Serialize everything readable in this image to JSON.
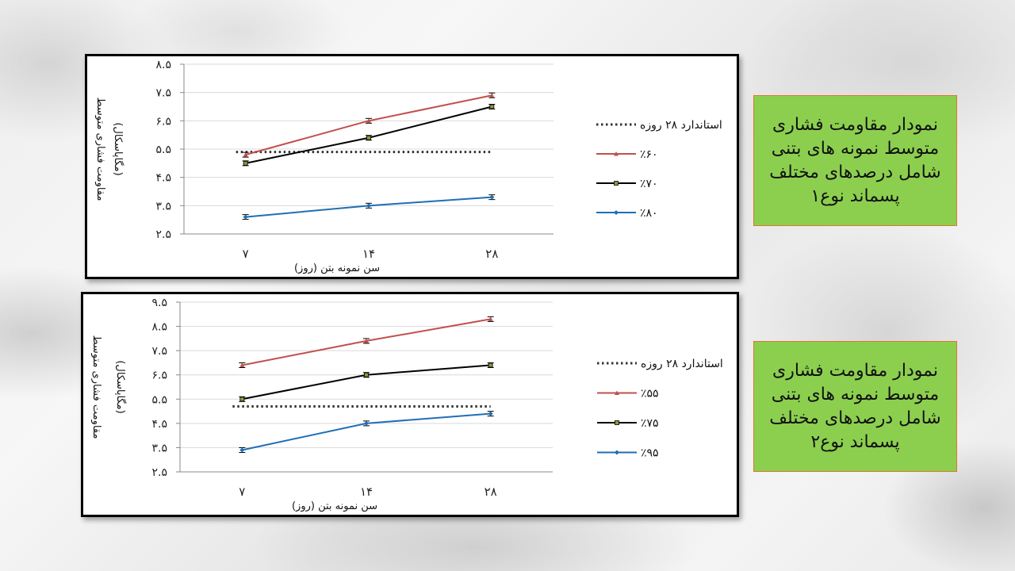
{
  "chart_data": [
    {
      "type": "line",
      "xlabel": "سن نمونه بتن (روز)",
      "ylabel_line1": "مقاومت فشاری متوسط",
      "ylabel_line2": "(مگاپاسکال)",
      "categories": [
        "۷",
        "۱۴",
        "۲۸"
      ],
      "yticks": [
        "۸.۵",
        "۷.۵",
        "۶.۵",
        "۵.۵",
        "۴.۵",
        "۳.۵",
        "۲.۵"
      ],
      "ylim": [
        2.5,
        8.5
      ],
      "grid": true,
      "legend_position": "right",
      "standard": {
        "name": "استاندارد ۲۸ روزه",
        "value": 5.4,
        "color": "#333333"
      },
      "series": [
        {
          "name": "٪۶۰",
          "values": [
            5.3,
            6.5,
            7.4
          ],
          "color": "#c0504d",
          "marker": "triangle"
        },
        {
          "name": "٪۷۰",
          "values": [
            5.0,
            5.9,
            7.0
          ],
          "color": "#000000",
          "marker": "square"
        },
        {
          "name": "٪۸۰",
          "values": [
            3.1,
            3.5,
            3.8
          ],
          "color": "#1f6fb4",
          "marker": "diamond"
        }
      ]
    },
    {
      "type": "line",
      "xlabel": "سن نمونه بتن (روز)",
      "ylabel_line1": "مقاومت فشاری متوسط",
      "ylabel_line2": "(مگاپاسکال)",
      "categories": [
        "۷",
        "۱۴",
        "۲۸"
      ],
      "yticks": [
        "۹.۵",
        "۸.۵",
        "۷.۵",
        "۶.۵",
        "۵.۵",
        "۴.۵",
        "۳.۵",
        "۲.۵"
      ],
      "ylim": [
        2.5,
        9.5
      ],
      "grid": true,
      "legend_position": "right",
      "standard": {
        "name": "استاندارد ۲۸ روزه",
        "value": 5.2,
        "color": "#333333"
      },
      "series": [
        {
          "name": "٪۵۵",
          "values": [
            6.9,
            7.9,
            8.8
          ],
          "color": "#c0504d",
          "marker": "triangle"
        },
        {
          "name": "٪۷۵",
          "values": [
            5.5,
            6.5,
            6.9
          ],
          "color": "#000000",
          "marker": "square"
        },
        {
          "name": "٪۹۵",
          "values": [
            3.4,
            4.5,
            4.9
          ],
          "color": "#1f6fb4",
          "marker": "diamond"
        }
      ]
    }
  ],
  "captions": [
    {
      "text": "نمودار مقاومت فشاری متوسط نمونه های بتنی شامل درصدهای مختلف پسماند نوع۱"
    },
    {
      "text": "نمودار مقاومت فشاری متوسط نمونه های بتنی شامل درصدهای مختلف پسماند نوع۲"
    }
  ],
  "colors": {
    "caption_bg": "#8ccf4f",
    "caption_border": "#d9782f",
    "frame_border": "#000000"
  }
}
